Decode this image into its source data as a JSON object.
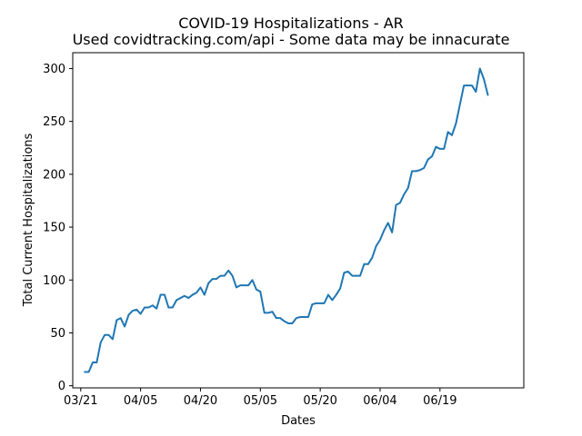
{
  "chart_data": {
    "type": "line",
    "title": "COVID-19 Hospitalizations - AR",
    "subtitle": "Used covidtracking.com/api - Some data may be innacurate",
    "xlabel": "Dates",
    "ylabel": "Total Current Hospitalizations",
    "x_axis": {
      "type": "date",
      "ticks": [
        {
          "date": "2020-03-21",
          "label": "03/21"
        },
        {
          "date": "2020-04-05",
          "label": "04/05"
        },
        {
          "date": "2020-04-20",
          "label": "04/20"
        },
        {
          "date": "2020-05-05",
          "label": "05/05"
        },
        {
          "date": "2020-05-20",
          "label": "05/20"
        },
        {
          "date": "2020-06-04",
          "label": "06/04"
        },
        {
          "date": "2020-06-19",
          "label": "06/19"
        }
      ],
      "range": [
        "2020-03-19",
        "2020-07-10"
      ]
    },
    "y_axis": {
      "ticks": [
        0,
        50,
        100,
        150,
        200,
        250,
        300
      ],
      "ylim": [
        -2,
        315
      ]
    },
    "grid": false,
    "legend": false,
    "series": [
      {
        "color": "#1f77b4",
        "points": [
          [
            "2020-03-22",
            13
          ],
          [
            "2020-03-23",
            13
          ],
          [
            "2020-03-24",
            22
          ],
          [
            "2020-03-25",
            22
          ],
          [
            "2020-03-26",
            41
          ],
          [
            "2020-03-27",
            48
          ],
          [
            "2020-03-28",
            48
          ],
          [
            "2020-03-29",
            44
          ],
          [
            "2020-03-30",
            62
          ],
          [
            "2020-03-31",
            64
          ],
          [
            "2020-04-01",
            56
          ],
          [
            "2020-04-02",
            67
          ],
          [
            "2020-04-03",
            71
          ],
          [
            "2020-04-04",
            72
          ],
          [
            "2020-04-05",
            68
          ],
          [
            "2020-04-06",
            74
          ],
          [
            "2020-04-07",
            74
          ],
          [
            "2020-04-08",
            76
          ],
          [
            "2020-04-09",
            73
          ],
          [
            "2020-04-10",
            86
          ],
          [
            "2020-04-11",
            86
          ],
          [
            "2020-04-12",
            74
          ],
          [
            "2020-04-13",
            74
          ],
          [
            "2020-04-14",
            81
          ],
          [
            "2020-04-15",
            83
          ],
          [
            "2020-04-16",
            85
          ],
          [
            "2020-04-17",
            83
          ],
          [
            "2020-04-18",
            86
          ],
          [
            "2020-04-19",
            88
          ],
          [
            "2020-04-20",
            93
          ],
          [
            "2020-04-21",
            86
          ],
          [
            "2020-04-22",
            97
          ],
          [
            "2020-04-23",
            101
          ],
          [
            "2020-04-24",
            101
          ],
          [
            "2020-04-25",
            104
          ],
          [
            "2020-04-26",
            104
          ],
          [
            "2020-04-27",
            109
          ],
          [
            "2020-04-28",
            104
          ],
          [
            "2020-04-29",
            93
          ],
          [
            "2020-04-30",
            95
          ],
          [
            "2020-05-01",
            95
          ],
          [
            "2020-05-02",
            95
          ],
          [
            "2020-05-03",
            100
          ],
          [
            "2020-05-04",
            91
          ],
          [
            "2020-05-05",
            89
          ],
          [
            "2020-05-06",
            69
          ],
          [
            "2020-05-07",
            69
          ],
          [
            "2020-05-08",
            70
          ],
          [
            "2020-05-09",
            64
          ],
          [
            "2020-05-10",
            64
          ],
          [
            "2020-05-11",
            61
          ],
          [
            "2020-05-12",
            59
          ],
          [
            "2020-05-13",
            59
          ],
          [
            "2020-05-14",
            64
          ],
          [
            "2020-05-15",
            65
          ],
          [
            "2020-05-16",
            65
          ],
          [
            "2020-05-17",
            65
          ],
          [
            "2020-05-18",
            77
          ],
          [
            "2020-05-19",
            78
          ],
          [
            "2020-05-20",
            78
          ],
          [
            "2020-05-21",
            78
          ],
          [
            "2020-05-22",
            86
          ],
          [
            "2020-05-23",
            81
          ],
          [
            "2020-05-24",
            86
          ],
          [
            "2020-05-25",
            92
          ],
          [
            "2020-05-26",
            107
          ],
          [
            "2020-05-27",
            108
          ],
          [
            "2020-05-28",
            104
          ],
          [
            "2020-05-29",
            104
          ],
          [
            "2020-05-30",
            104
          ],
          [
            "2020-05-31",
            115
          ],
          [
            "2020-06-01",
            115
          ],
          [
            "2020-06-02",
            121
          ],
          [
            "2020-06-03",
            132
          ],
          [
            "2020-06-04",
            138
          ],
          [
            "2020-06-05",
            147
          ],
          [
            "2020-06-06",
            154
          ],
          [
            "2020-06-07",
            145
          ],
          [
            "2020-06-08",
            171
          ],
          [
            "2020-06-09",
            173
          ],
          [
            "2020-06-10",
            181
          ],
          [
            "2020-06-11",
            187
          ],
          [
            "2020-06-12",
            203
          ],
          [
            "2020-06-13",
            203
          ],
          [
            "2020-06-14",
            204
          ],
          [
            "2020-06-15",
            206
          ],
          [
            "2020-06-16",
            214
          ],
          [
            "2020-06-17",
            217
          ],
          [
            "2020-06-18",
            226
          ],
          [
            "2020-06-19",
            224
          ],
          [
            "2020-06-20",
            224
          ],
          [
            "2020-06-21",
            240
          ],
          [
            "2020-06-22",
            237
          ],
          [
            "2020-06-23",
            248
          ],
          [
            "2020-06-24",
            266
          ],
          [
            "2020-06-25",
            284
          ],
          [
            "2020-06-26",
            284
          ],
          [
            "2020-06-27",
            284
          ],
          [
            "2020-06-28",
            278
          ],
          [
            "2020-06-29",
            300
          ],
          [
            "2020-06-30",
            290
          ],
          [
            "2020-07-01",
            275
          ]
        ]
      }
    ]
  }
}
